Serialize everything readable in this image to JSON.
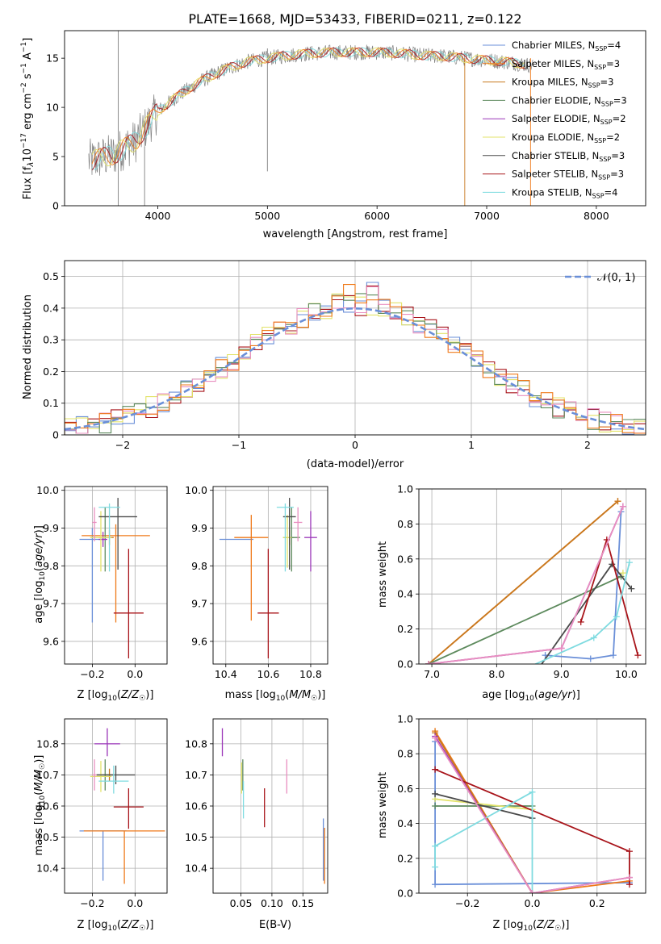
{
  "colors": {
    "Chabrier MILES": "#6a8fd8",
    "Salpeter MILES": "#ef7a1a",
    "Kroupa MILES": "#c8781e",
    "Chabrier ELODIE": "#5d8a5d",
    "Salpeter ELODIE": "#9a35b8",
    "Kroupa ELODIE": "#e3e36a",
    "Chabrier STELIB": "#4a4a4a",
    "Salpeter STELIB": "#a8141a",
    "Kroupa STELIB": "#7fdbe0",
    "pink": "#e98fc0",
    "data": "#808080"
  },
  "chart_data": [
    {
      "id": "spectrum",
      "type": "line",
      "title": "PLATE=1668, MJD=53433, FIBERID=0211, z=0.122",
      "xlabel": "wavelength [Angstrom, rest frame]",
      "ylabel": "Flux [f_λ10^-17 erg cm^-2 s^-1 A^-1]",
      "xlim": [
        3150,
        8450
      ],
      "ylim": [
        0,
        17.8
      ],
      "xticks": [
        4000,
        5000,
        6000,
        7000,
        8000
      ],
      "yticks": [
        0,
        5,
        10,
        15
      ],
      "continuum_anchor": {
        "x": [
          3400,
          3600,
          3800,
          4000,
          4200,
          4400,
          4600,
          4800,
          5000,
          5200,
          5400,
          5600,
          5800,
          6000,
          6200,
          6400,
          6600,
          6800,
          7000,
          7200,
          7400
        ],
        "y": [
          4.6,
          5.2,
          6.6,
          9.6,
          11.3,
          12.7,
          13.8,
          14.6,
          15.0,
          15.3,
          15.5,
          15.6,
          15.6,
          15.6,
          15.5,
          15.3,
          15.2,
          15.0,
          14.8,
          14.6,
          14.3
        ]
      },
      "legend": [
        "Chabrier MILES, N_SSP=4",
        "Salpeter MILES, N_SSP=3",
        "Kroupa MILES, N_SSP=3",
        "Chabrier ELODIE, N_SSP=3",
        "Salpeter ELODIE, N_SSP=2",
        "Kroupa ELODIE, N_SSP=2",
        "Chabrier STELIB, N_SSP=3",
        "Salpeter STELIB, N_SSP=3",
        "Kroupa STELIB, N_SSP=4"
      ],
      "legend_placement": "top-right",
      "grid": false
    },
    {
      "id": "residuals",
      "type": "histogram",
      "xlabel": "(data-model)/error",
      "ylabel": "Normed distribution",
      "xlim": [
        -2.5,
        2.5
      ],
      "ylim": [
        0,
        0.55
      ],
      "xticks": [
        -2,
        -1,
        0,
        1,
        2
      ],
      "yticks": [
        0.0,
        0.1,
        0.2,
        0.3,
        0.4,
        0.5
      ],
      "legend": "𝒩(0, 1)",
      "legend_placement": "top-right",
      "grid": true
    },
    {
      "id": "age_vs_Z",
      "type": "scatter",
      "xlabel": "Z [log10(Z/Z☉)]",
      "ylabel": "age  [log10(age/yr)]",
      "xlim": [
        -0.33,
        0.15
      ],
      "ylim": [
        9.54,
        10.01
      ],
      "xticks": [
        -0.2,
        0.0
      ],
      "yticks": [
        9.6,
        9.7,
        9.8,
        9.9,
        10.0
      ],
      "points": [
        {
          "c": "Chabrier MILES",
          "x": -0.2,
          "y": 9.87,
          "xe": 0.06,
          "ye": [
            0.22,
            0.03
          ]
        },
        {
          "c": "Salpeter MILES",
          "x": -0.09,
          "y": 9.88,
          "xe": 0.16,
          "ye": [
            0.23,
            0.03
          ]
        },
        {
          "c": "Kroupa MILES",
          "x": -0.12,
          "y": 9.875,
          "xe": 0.02,
          "ye": [
            0.02,
            0.02
          ]
        },
        {
          "c": "Chabrier ELODIE",
          "x": -0.14,
          "y": 9.875,
          "xe": 0.03,
          "ye": [
            0.09,
            0.08
          ]
        },
        {
          "c": "Salpeter ELODIE",
          "x": -0.15,
          "y": 9.87,
          "xe": 0.02,
          "ye": [
            0.02,
            0.02
          ]
        },
        {
          "c": "Kroupa ELODIE",
          "x": -0.16,
          "y": 9.875,
          "xe": 0.05,
          "ye": [
            0.09,
            0.07
          ]
        },
        {
          "c": "Chabrier STELIB",
          "x": -0.08,
          "y": 9.93,
          "xe": 0.09,
          "ye": [
            0.14,
            0.05
          ]
        },
        {
          "c": "Salpeter STELIB",
          "x": -0.03,
          "y": 9.675,
          "xe": 0.07,
          "ye": [
            0.12,
            0.17
          ]
        },
        {
          "c": "Kroupa STELIB",
          "x": -0.12,
          "y": 9.955,
          "xe": 0.05,
          "ye": [
            0.17,
            0.01
          ]
        },
        {
          "c": "pink",
          "x": -0.19,
          "y": 9.915,
          "xe": 0.01,
          "ye": [
            0.05,
            0.04
          ]
        }
      ]
    },
    {
      "id": "age_vs_mass",
      "type": "scatter",
      "xlabel": "mass [log10(M/M☉)]",
      "ylabel": "",
      "xlim": [
        10.34,
        10.88
      ],
      "ylim": [
        9.54,
        10.01
      ],
      "xticks": [
        10.4,
        10.6,
        10.8
      ],
      "yticks": [
        9.6,
        9.7,
        9.8,
        9.9,
        10.0
      ],
      "points": [
        {
          "c": "Chabrier MILES",
          "x": 10.45,
          "y": 9.87,
          "xe": 0.08,
          "ye": [
            0.0,
            0.0
          ]
        },
        {
          "c": "Salpeter MILES",
          "x": 10.52,
          "y": 9.875,
          "xe": 0.08,
          "ye": [
            0.22,
            0.06
          ]
        },
        {
          "c": "Kroupa MILES",
          "x": 10.7,
          "y": 9.875,
          "xe": 0.02,
          "ye": [
            0.02,
            0.02
          ]
        },
        {
          "c": "Chabrier ELODIE",
          "x": 10.71,
          "y": 9.875,
          "xe": 0.04,
          "ye": [
            0.09,
            0.08
          ]
        },
        {
          "c": "Salpeter ELODIE",
          "x": 10.8,
          "y": 9.875,
          "xe": 0.03,
          "ye": [
            0.09,
            0.07
          ]
        },
        {
          "c": "Kroupa ELODIE",
          "x": 10.69,
          "y": 9.875,
          "xe": 0.02,
          "ye": [
            0.08,
            0.06
          ]
        },
        {
          "c": "Chabrier STELIB",
          "x": 10.7,
          "y": 9.93,
          "xe": 0.03,
          "ye": [
            0.14,
            0.05
          ]
        },
        {
          "c": "Salpeter STELIB",
          "x": 10.6,
          "y": 9.675,
          "xe": 0.05,
          "ye": [
            0.12,
            0.17
          ]
        },
        {
          "c": "Kroupa STELIB",
          "x": 10.68,
          "y": 9.955,
          "xe": 0.04,
          "ye": [
            0.17,
            0.01
          ]
        },
        {
          "c": "pink",
          "x": 10.74,
          "y": 9.915,
          "xe": 0.02,
          "ye": [
            0.05,
            0.04
          ]
        }
      ]
    },
    {
      "id": "weight_vs_age",
      "type": "line",
      "xlabel": "age  [log10(age/yr)]",
      "ylabel": "mass weight",
      "xlim": [
        6.8,
        10.3
      ],
      "ylim": [
        0,
        1.0
      ],
      "xticks": [
        7,
        8,
        9,
        10
      ],
      "yticks": [
        0.0,
        0.2,
        0.4,
        0.6,
        0.8,
        1.0
      ],
      "grid": true,
      "series": [
        {
          "c": "Chabrier MILES",
          "x": [
            8.75,
            9.45,
            9.8,
            9.92
          ],
          "y": [
            0.05,
            0.03,
            0.05,
            0.87
          ]
        },
        {
          "c": "Salpeter MILES",
          "x": [
            6.95,
            9.87
          ],
          "y": [
            0.0,
            0.93
          ]
        },
        {
          "c": "Kroupa MILES",
          "x": [
            6.95,
            9.87
          ],
          "y": [
            0.0,
            0.93
          ]
        },
        {
          "c": "Chabrier ELODIE",
          "x": [
            6.95,
            9.92
          ],
          "y": [
            0.0,
            0.5
          ]
        },
        {
          "c": "Salpeter ELODIE",
          "x": [
            6.95,
            9.0,
            9.95
          ],
          "y": [
            0.0,
            0.09,
            0.9
          ]
        },
        {
          "c": "Kroupa ELODIE",
          "x": [
            9.95
          ],
          "y": [
            0.52
          ]
        },
        {
          "c": "Chabrier STELIB",
          "x": [
            8.6,
            9.78,
            10.08
          ],
          "y": [
            -0.05,
            0.57,
            0.43
          ]
        },
        {
          "c": "Salpeter STELIB",
          "x": [
            9.3,
            9.7,
            10.18
          ],
          "y": [
            0.24,
            0.71,
            0.05
          ]
        },
        {
          "c": "Kroupa STELIB",
          "x": [
            8.3,
            9.5,
            9.85,
            10.05
          ],
          "y": [
            -0.05,
            0.15,
            0.27,
            0.58
          ]
        },
        {
          "c": "pink",
          "x": [
            6.95,
            9.0,
            9.95
          ],
          "y": [
            0.0,
            0.09,
            0.9
          ]
        }
      ]
    },
    {
      "id": "mass_vs_Z",
      "type": "scatter",
      "xlabel": "Z [log10(Z/Z☉)]",
      "ylabel": "mass [log10(M/M☉)]",
      "xlim": [
        -0.33,
        0.15
      ],
      "ylim": [
        10.32,
        10.88
      ],
      "xticks": [
        -0.2,
        0.0
      ],
      "yticks": [
        10.4,
        10.5,
        10.6,
        10.7,
        10.8
      ],
      "points": [
        {
          "c": "Chabrier MILES",
          "x": -0.15,
          "y": 10.52,
          "xe": 0.11,
          "ye": [
            0.16,
            0.0
          ]
        },
        {
          "c": "Salpeter MILES",
          "x": -0.05,
          "y": 10.52,
          "xe": 0.19,
          "ye": [
            0.17,
            0.0
          ]
        },
        {
          "c": "Kroupa MILES",
          "x": -0.12,
          "y": 10.7,
          "xe": 0.02,
          "ye": [
            0.02,
            0.02
          ]
        },
        {
          "c": "Chabrier ELODIE",
          "x": -0.14,
          "y": 10.7,
          "xe": 0.04,
          "ye": [
            0.05,
            0.05
          ]
        },
        {
          "c": "Salpeter ELODIE",
          "x": -0.13,
          "y": 10.8,
          "xe": 0.06,
          "ye": [
            0.04,
            0.05
          ]
        },
        {
          "c": "Kroupa ELODIE",
          "x": -0.16,
          "y": 10.695,
          "xe": 0.05,
          "ye": [
            0.05,
            0.05
          ]
        },
        {
          "c": "Chabrier STELIB",
          "x": -0.09,
          "y": 10.7,
          "xe": 0.09,
          "ye": [
            0.03,
            0.03
          ]
        },
        {
          "c": "Salpeter STELIB",
          "x": -0.03,
          "y": 10.597,
          "xe": 0.07,
          "ye": [
            0.07,
            0.06
          ]
        },
        {
          "c": "Kroupa STELIB",
          "x": -0.1,
          "y": 10.68,
          "xe": 0.07,
          "ye": [
            0.04,
            0.05
          ]
        },
        {
          "c": "pink",
          "x": -0.19,
          "y": 10.7,
          "xe": 0.01,
          "ye": [
            0.05,
            0.05
          ]
        }
      ]
    },
    {
      "id": "mass_vs_EBV",
      "type": "scatter",
      "xlabel": "E(B-V)",
      "ylabel": "",
      "xlim": [
        0.005,
        0.19
      ],
      "ylim": [
        10.32,
        10.88
      ],
      "xticks": [
        0.05,
        0.1,
        0.15
      ],
      "yticks": [
        10.4,
        10.5,
        10.6,
        10.7,
        10.8
      ],
      "points": [
        {
          "c": "Salpeter ELODIE",
          "x": 0.02,
          "y": 10.8,
          "xe": 0.0,
          "ye": [
            0.04,
            0.05
          ]
        },
        {
          "c": "Chabrier ELODIE",
          "x": 0.053,
          "y": 10.7,
          "xe": 0.0,
          "ye": [
            0.05,
            0.05
          ]
        },
        {
          "c": "Kroupa ELODIE",
          "x": 0.051,
          "y": 10.69,
          "xe": 0.0,
          "ye": [
            0.05,
            0.05
          ]
        },
        {
          "c": "Kroupa STELIB",
          "x": 0.054,
          "y": 10.62,
          "xe": 0.0,
          "ye": [
            0.06,
            0.06
          ]
        },
        {
          "c": "Salpeter STELIB",
          "x": 0.088,
          "y": 10.597,
          "xe": 0.0,
          "ye": [
            0.065,
            0.06
          ]
        },
        {
          "c": "pink",
          "x": 0.124,
          "y": 10.7,
          "xe": 0.0,
          "ye": [
            0.06,
            0.05
          ]
        },
        {
          "c": "Chabrier MILES",
          "x": 0.183,
          "y": 10.47,
          "xe": 0.0,
          "ye": [
            0.11,
            0.09
          ]
        },
        {
          "c": "Salpeter MILES",
          "x": 0.185,
          "y": 10.45,
          "xe": 0.0,
          "ye": [
            0.1,
            0.08
          ]
        }
      ]
    },
    {
      "id": "weight_vs_Z",
      "type": "line",
      "xlabel": "Z [log10(Z/Z☉)]",
      "ylabel": "mass weight",
      "xlim": [
        -0.35,
        0.35
      ],
      "ylim": [
        0,
        1.0
      ],
      "xticks": [
        -0.2,
        0.0,
        0.2
      ],
      "yticks": [
        0.0,
        0.2,
        0.4,
        0.6,
        0.8,
        1.0
      ],
      "grid": true,
      "series": [
        {
          "c": "Chabrier MILES",
          "x": [
            -0.3,
            -0.3,
            0.3
          ],
          "y": [
            0.87,
            0.05,
            0.06
          ]
        },
        {
          "c": "Salpeter MILES",
          "x": [
            -0.3,
            0.0,
            0.3
          ],
          "y": [
            0.93,
            0.0,
            0.07
          ]
        },
        {
          "c": "Kroupa MILES",
          "x": [
            -0.3,
            0.0
          ],
          "y": [
            0.92,
            0.0
          ]
        },
        {
          "c": "Chabrier ELODIE",
          "x": [
            -0.3,
            0.0
          ],
          "y": [
            0.5,
            0.5
          ]
        },
        {
          "c": "Salpeter ELODIE",
          "x": [
            -0.3,
            0.0,
            0.3
          ],
          "y": [
            0.9,
            0.0,
            0.09
          ]
        },
        {
          "c": "Kroupa ELODIE",
          "x": [
            -0.3,
            0.0
          ],
          "y": [
            0.54,
            0.48
          ]
        },
        {
          "c": "Chabrier STELIB",
          "x": [
            -0.3,
            0.0
          ],
          "y": [
            0.57,
            0.43
          ]
        },
        {
          "c": "Salpeter STELIB",
          "x": [
            -0.3,
            0.3,
            0.3
          ],
          "y": [
            0.71,
            0.24,
            0.05
          ]
        },
        {
          "c": "Kroupa STELIB",
          "x": [
            -0.3,
            -0.3,
            0.0,
            0.0
          ],
          "y": [
            0.15,
            0.27,
            0.58,
            0.0
          ]
        },
        {
          "c": "pink",
          "x": [
            -0.3,
            0.0,
            0.3
          ],
          "y": [
            0.89,
            0.0,
            0.09
          ]
        }
      ]
    }
  ]
}
